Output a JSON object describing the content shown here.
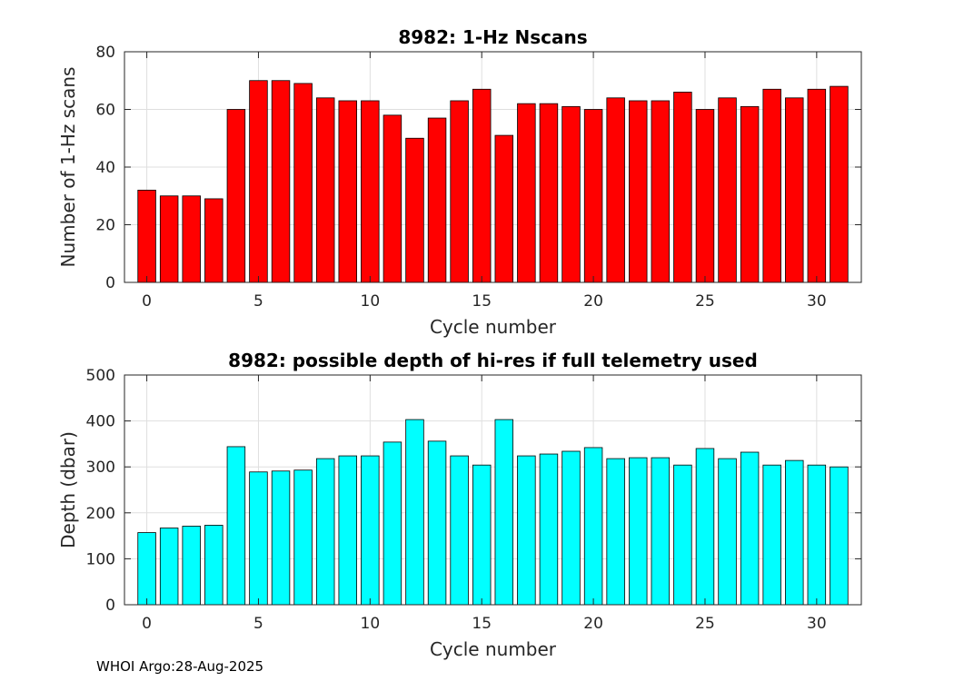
{
  "footer": "WHOI Argo:28-Aug-2025",
  "chart_data": [
    {
      "type": "bar",
      "title": "8982: 1-Hz Nscans",
      "xlabel": "Cycle number",
      "ylabel": "Number of 1-Hz scans",
      "xlim": [
        -1,
        32
      ],
      "ylim": [
        0,
        80
      ],
      "xticks": [
        0,
        5,
        10,
        15,
        20,
        25,
        30
      ],
      "yticks": [
        0,
        20,
        40,
        60,
        80
      ],
      "grid": true,
      "bar_color": "#ff0000",
      "x": [
        0,
        1,
        2,
        3,
        4,
        5,
        6,
        7,
        8,
        9,
        10,
        11,
        12,
        13,
        14,
        15,
        16,
        17,
        18,
        19,
        20,
        21,
        22,
        23,
        24,
        25,
        26,
        27,
        28,
        29,
        30,
        31
      ],
      "values": [
        32,
        30,
        30,
        29,
        60,
        70,
        70,
        69,
        64,
        63,
        63,
        58,
        50,
        57,
        63,
        67,
        51,
        62,
        62,
        61,
        60,
        64,
        63,
        63,
        66,
        60,
        64,
        61,
        67,
        64,
        67,
        68
      ]
    },
    {
      "type": "bar",
      "title": "8982: possible depth of hi-res if full telemetry used",
      "xlabel": "Cycle number",
      "ylabel": "Depth (dbar)",
      "xlim": [
        -1,
        32
      ],
      "ylim": [
        0,
        500
      ],
      "xticks": [
        0,
        5,
        10,
        15,
        20,
        25,
        30
      ],
      "yticks": [
        0,
        100,
        200,
        300,
        400,
        500
      ],
      "grid": true,
      "bar_color": "#00ffff",
      "x": [
        0,
        1,
        2,
        3,
        4,
        5,
        6,
        7,
        8,
        9,
        10,
        11,
        12,
        13,
        14,
        15,
        16,
        17,
        18,
        19,
        20,
        21,
        22,
        23,
        24,
        25,
        26,
        27,
        28,
        29,
        30,
        31
      ],
      "values": [
        157,
        167,
        171,
        173,
        344,
        289,
        291,
        293,
        318,
        324,
        324,
        354,
        403,
        356,
        324,
        304,
        403,
        324,
        328,
        334,
        342,
        318,
        320,
        320,
        304,
        340,
        318,
        332,
        304,
        314,
        304,
        300
      ]
    }
  ]
}
